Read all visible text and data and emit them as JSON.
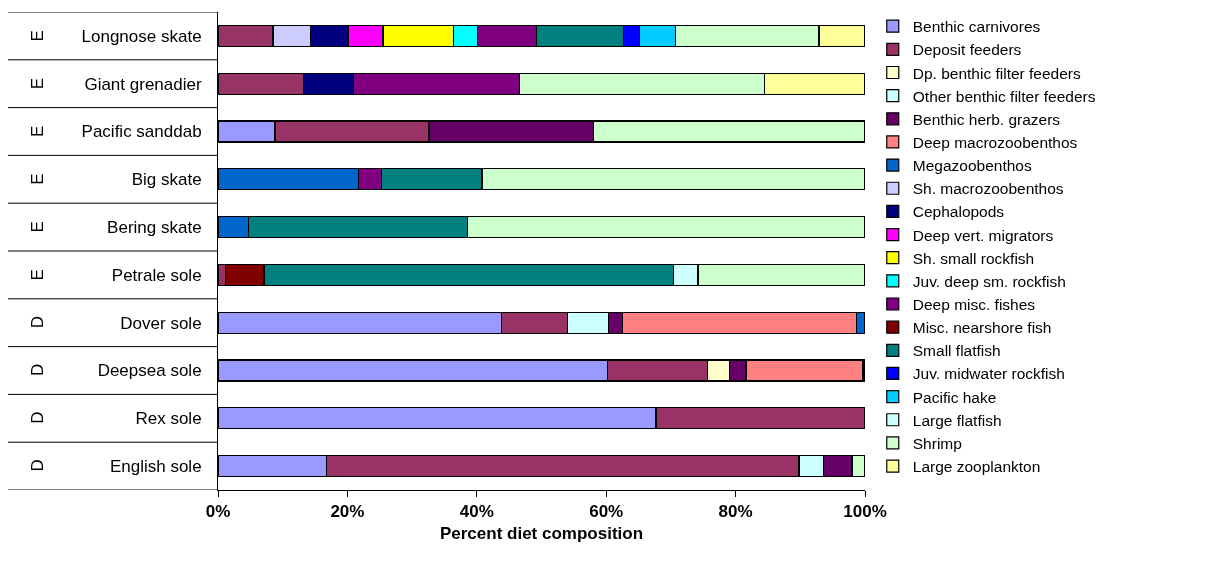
{
  "chart_data": {
    "type": "bar",
    "orientation": "horizontal",
    "stacked": true,
    "xlabel": "Percent diet composition",
    "categories": [
      "Longnose skate",
      "Giant grenadier",
      "Pacific sanddab",
      "Big skate",
      "Bering skate",
      "Petrale sole",
      "Dover sole",
      "Deepsea sole",
      "Rex sole",
      "English sole"
    ],
    "annotations": [
      "E",
      "E",
      "E",
      "E",
      "E",
      "E",
      "D",
      "D",
      "D",
      "D"
    ],
    "xlim": [
      0,
      100
    ],
    "xticks": [
      {
        "value": 0,
        "label": "0%"
      },
      {
        "value": 20,
        "label": "20%"
      },
      {
        "value": 40,
        "label": "40%"
      },
      {
        "value": 60,
        "label": "60%"
      },
      {
        "value": 80,
        "label": "80%"
      },
      {
        "value": 100,
        "label": "100%"
      }
    ],
    "grid": false,
    "legend": "right",
    "series": [
      {
        "name": "Benthic carnivores",
        "color": "#9999ff",
        "values": [
          null,
          null,
          8.8,
          null,
          null,
          null,
          43.8,
          60.2,
          67.7,
          16.8
        ]
      },
      {
        "name": "Deposit feeders",
        "color": "#993366",
        "values": [
          8.5,
          13.2,
          23.8,
          null,
          null,
          1.1,
          10.2,
          15.4,
          32.3,
          73.0
        ]
      },
      {
        "name": "Dp. benthic filter feeders",
        "color": "#ffffcc",
        "values": [
          null,
          null,
          null,
          null,
          null,
          null,
          null,
          3.5,
          null,
          null
        ]
      },
      {
        "name": "Other benthic filter feeders",
        "color": "#ccffff",
        "values": [
          null,
          null,
          null,
          null,
          null,
          null,
          6.4,
          null,
          null,
          3.8
        ]
      },
      {
        "name": "Benthic herb. grazers",
        "color": "#660066",
        "values": [
          null,
          null,
          25.4,
          null,
          null,
          null,
          2.1,
          2.5,
          null,
          4.4
        ]
      },
      {
        "name": "Deep macrozoobenthos",
        "color": "#ff8080",
        "values": [
          null,
          null,
          null,
          null,
          null,
          null,
          36.2,
          18.1,
          null,
          null
        ]
      },
      {
        "name": "Megazoobenthos",
        "color": "#0066cc",
        "values": [
          null,
          null,
          null,
          21.7,
          4.7,
          null,
          1.3,
          0.3,
          null,
          null
        ]
      },
      {
        "name": "Sh. macrozoobenthos",
        "color": "#ccccff",
        "values": [
          5.8,
          null,
          null,
          null,
          null,
          null,
          null,
          null,
          null,
          null
        ]
      },
      {
        "name": "Cephalopods",
        "color": "#000080",
        "values": [
          5.9,
          7.7,
          null,
          null,
          null,
          null,
          null,
          null,
          null,
          null
        ]
      },
      {
        "name": "Deep vert. migrators",
        "color": "#ff00ff",
        "values": [
          5.3,
          null,
          null,
          null,
          null,
          null,
          null,
          null,
          null,
          null
        ]
      },
      {
        "name": "Sh. small rockfish",
        "color": "#ffff00",
        "values": [
          10.9,
          null,
          null,
          null,
          null,
          null,
          null,
          null,
          null,
          null
        ]
      },
      {
        "name": "Juv. deep sm. rockfish",
        "color": "#00ffff",
        "values": [
          3.7,
          null,
          null,
          null,
          null,
          null,
          null,
          null,
          null,
          null
        ]
      },
      {
        "name": "Deep misc. fishes",
        "color": "#800080",
        "values": [
          9.1,
          25.7,
          null,
          3.6,
          null,
          null,
          null,
          null,
          null,
          null
        ]
      },
      {
        "name": "Misc. nearshore fish",
        "color": "#800000",
        "values": [
          null,
          null,
          null,
          null,
          null,
          6.0,
          null,
          null,
          null,
          null
        ]
      },
      {
        "name": "Small flatfish",
        "color": "#008080",
        "values": [
          13.5,
          null,
          null,
          15.5,
          33.8,
          63.3,
          null,
          null,
          null,
          null
        ]
      },
      {
        "name": "Juv. midwater rockfish",
        "color": "#0000ff",
        "values": [
          2.5,
          null,
          null,
          null,
          null,
          null,
          null,
          null,
          null,
          null
        ]
      },
      {
        "name": "Pacific hake",
        "color": "#00ccff",
        "values": [
          5.5,
          null,
          null,
          null,
          null,
          null,
          null,
          null,
          null,
          null
        ]
      },
      {
        "name": "Large flatfish",
        "color": "#cdfffe",
        "values": [
          null,
          null,
          null,
          null,
          null,
          3.8,
          null,
          null,
          null,
          null
        ]
      },
      {
        "name": "Shrimp",
        "color": "#ccffcc",
        "values": [
          22.2,
          37.9,
          42.0,
          59.2,
          61.5,
          25.8,
          null,
          null,
          null,
          2.0
        ]
      },
      {
        "name": "Large zooplankton",
        "color": "#ffff99",
        "values": [
          7.1,
          15.5,
          null,
          null,
          null,
          null,
          null,
          null,
          null,
          null
        ]
      }
    ]
  }
}
